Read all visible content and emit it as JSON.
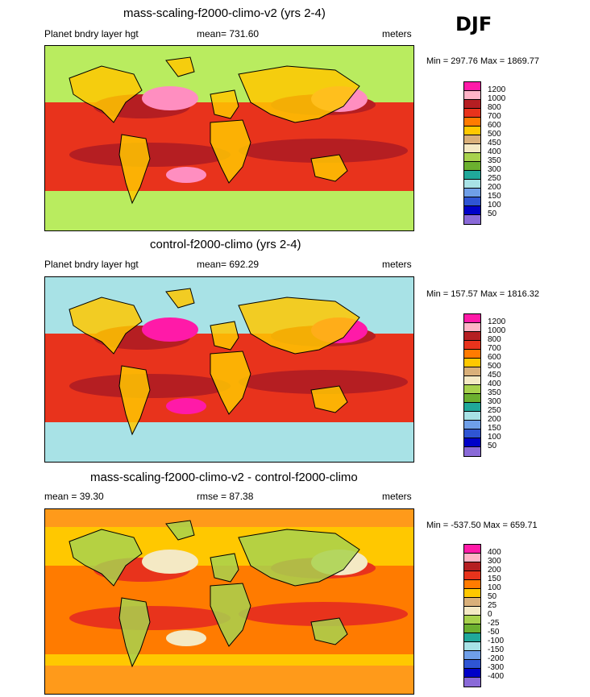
{
  "season": "DJF",
  "panels": [
    {
      "title": "mass-scaling-f2000-climo-v2 (yrs 2-4)",
      "left_label": "Planet bndry layer hgt",
      "center_label": "mean= 731.60",
      "units": "meters",
      "minmax": "Min = 297.76 Max = 1869.77",
      "legend": {
        "labels": [
          "1200",
          "1000",
          "800",
          "700",
          "600",
          "500",
          "450",
          "400",
          "350",
          "300",
          "250",
          "200",
          "150",
          "100",
          "50"
        ],
        "colors": [
          "#ff1aa8",
          "#ffb3c6",
          "#b51e22",
          "#e8331c",
          "#ff7b00",
          "#ffc800",
          "#d9b07a",
          "#f4e9c4",
          "#a8d24d",
          "#6bb02f",
          "#20a89a",
          "#a8e2e6",
          "#6f9fe8",
          "#2f55d4",
          "#0000c8",
          "#8a6ad8"
        ]
      },
      "map_colors": {
        "ocean": "#b9ec5f",
        "band": "#e8331c",
        "deep": "#b51e22",
        "high": "#ff8ec0",
        "polar": "#b9ec5f",
        "land": "#ffc800"
      }
    },
    {
      "title": "control-f2000-climo (yrs 2-4)",
      "left_label": "Planet bndry layer hgt",
      "center_label": "mean= 692.29",
      "units": "meters",
      "minmax": "Min = 157.57 Max = 1816.32",
      "legend": {
        "labels": [
          "1200",
          "1000",
          "800",
          "700",
          "600",
          "500",
          "450",
          "400",
          "350",
          "300",
          "250",
          "200",
          "150",
          "100",
          "50"
        ],
        "colors": [
          "#ff1aa8",
          "#ffb3c6",
          "#b51e22",
          "#e8331c",
          "#ff7b00",
          "#ffc800",
          "#d9b07a",
          "#f4e9c4",
          "#a8d24d",
          "#6bb02f",
          "#20a89a",
          "#a8e2e6",
          "#6f9fe8",
          "#2f55d4",
          "#0000c8",
          "#8a6ad8"
        ]
      },
      "map_colors": {
        "ocean": "#a8e2e6",
        "band": "#e8331c",
        "deep": "#b51e22",
        "high": "#ff1aa8",
        "polar": "#a8e2e6",
        "land": "#ffc800"
      }
    },
    {
      "title": "mass-scaling-f2000-climo-v2 - control-f2000-climo",
      "left_label": "mean =  39.30",
      "center_label": "rmse =  87.38",
      "units": "meters",
      "minmax": "Min = -537.50 Max = 659.71",
      "legend": {
        "labels": [
          "400",
          "300",
          "200",
          "150",
          "100",
          "50",
          "25",
          "0",
          "-25",
          "-50",
          "-100",
          "-150",
          "-200",
          "-300",
          "-400"
        ],
        "colors": [
          "#ff1aa8",
          "#ffb3c6",
          "#b51e22",
          "#e8331c",
          "#ff7b00",
          "#ffc800",
          "#d9b07a",
          "#f4e9c4",
          "#a8d24d",
          "#6bb02f",
          "#20a89a",
          "#a8e2e6",
          "#6f9fe8",
          "#2f55d4",
          "#0000c8",
          "#8a6ad8"
        ]
      },
      "map_colors": {
        "ocean": "#ffc800",
        "band": "#ff7b00",
        "deep": "#e8331c",
        "high": "#f4e9c4",
        "polar": "#ff9a1a",
        "land": "#a8d24d"
      }
    }
  ]
}
